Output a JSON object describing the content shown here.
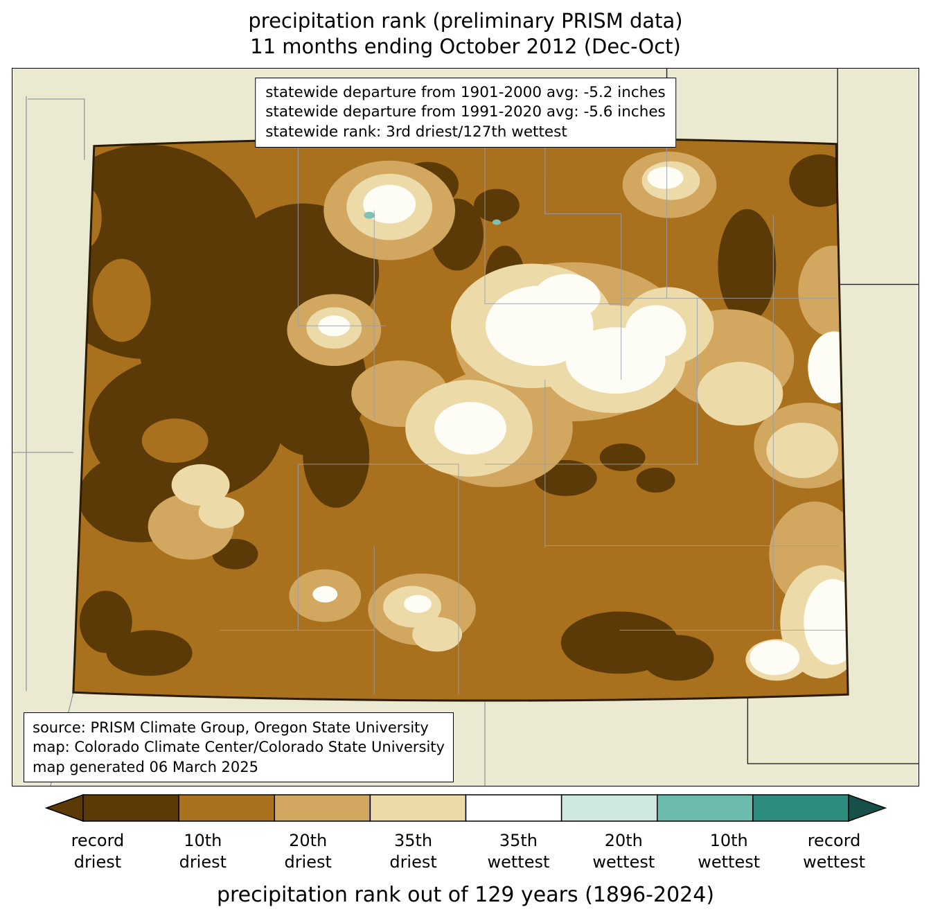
{
  "title": {
    "line1": "precipitation rank (preliminary PRISM data)",
    "line2": "11 months ending October 2012 (Dec-Oct)"
  },
  "stats_box": {
    "lines": [
      "statewide departure from 1901-2000 avg: -5.2 inches",
      "statewide departure from 1991-2020 avg: -5.6 inches",
      "statewide rank: 3rd driest/127th wettest"
    ]
  },
  "source_box": {
    "lines": [
      "source: PRISM Climate Group, Oregon State University",
      "map: Colorado Climate Center/Colorado State University",
      "map generated 06 March 2025"
    ]
  },
  "colorbar": {
    "caption": "precipitation rank out of 129 years (1896-2024)",
    "left_arrow_color": "#5b3a08",
    "right_arrow_color": "#17504a",
    "segments": [
      {
        "top": "record",
        "bottom": "driest",
        "color": "#5b3a08"
      },
      {
        "top": "10th",
        "bottom": "driest",
        "color": "#a9701d"
      },
      {
        "top": "20th",
        "bottom": "driest",
        "color": "#d2a75f"
      },
      {
        "top": "35th",
        "bottom": "driest",
        "color": "#eddaa9"
      },
      {
        "top": "35th",
        "bottom": "wettest",
        "color": "#ffffff"
      },
      {
        "top": "20th",
        "bottom": "wettest",
        "color": "#cfe9e1"
      },
      {
        "top": "10th",
        "bottom": "wettest",
        "color": "#6bbcae"
      },
      {
        "top": "record",
        "bottom": "wettest",
        "color": "#2f8d80"
      }
    ]
  },
  "map": {
    "region": "Colorado",
    "palette": {
      "record_driest": "#5b3a08",
      "driest10": "#a9701d",
      "driest20": "#d2a75f",
      "driest35": "#eddaa9",
      "near_normal": "#fdfdf6",
      "wettest20": "#7cc3b6",
      "land": "#ece9d3",
      "county": "#98a0aa",
      "state_border": "#2a1c06"
    }
  }
}
